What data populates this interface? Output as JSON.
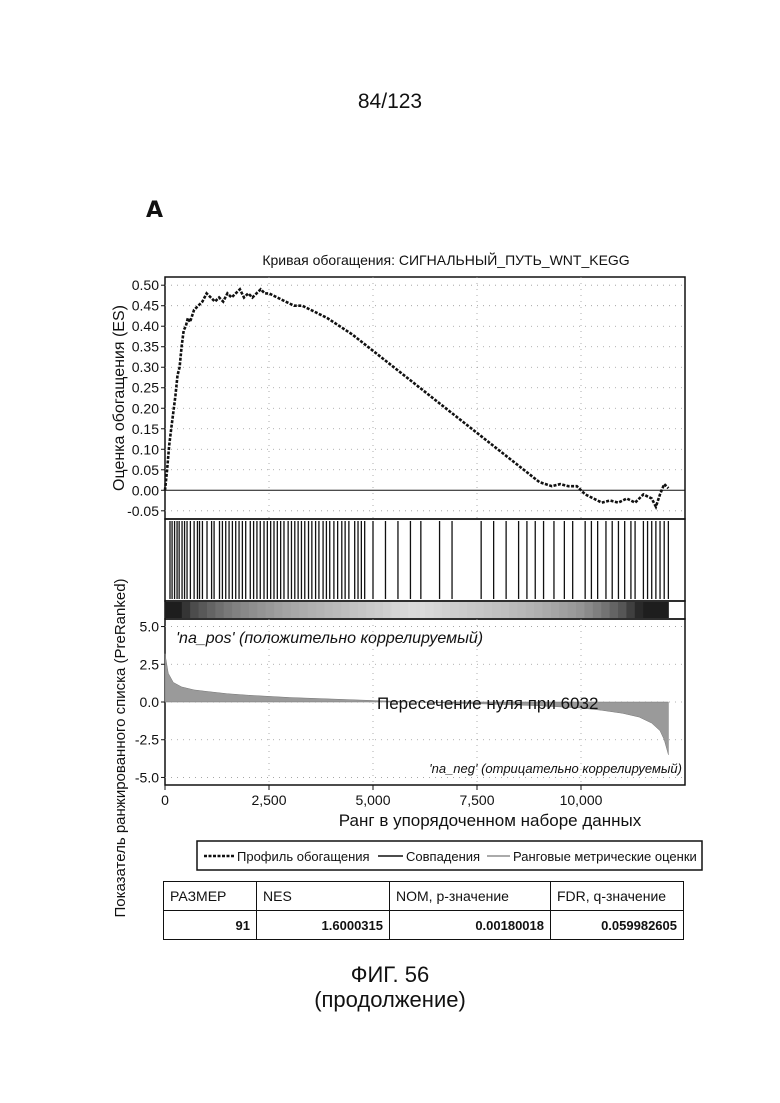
{
  "page_number": "84/123",
  "panel_label": "A",
  "figure": {
    "caption_line1": "ФИГ. 56",
    "caption_line2": "(продолжение)"
  },
  "chart_data": {
    "type": "line",
    "title": "Кривая обогащения: СИГНАЛЬНЫЙ_ПУТЬ_WNT_KEGG",
    "es_ylabel": "Оценка обогащения (ES)",
    "rank_ylabel": "Показатель ранжированного списка (PreRanked)",
    "xlabel": "Ранг в упорядоченном наборе данных",
    "xlim": [
      0,
      12500
    ],
    "x_ticks": [
      "0",
      "2,500",
      "5,000",
      "7,500",
      "10,000"
    ],
    "x_tick_values": [
      0,
      2500,
      5000,
      7500,
      10000
    ],
    "es_ylim": [
      -0.07,
      0.52
    ],
    "es_y_ticks": [
      "0.50",
      "0.45",
      "0.40",
      "0.35",
      "0.30",
      "0.25",
      "0.20",
      "0.15",
      "0.10",
      "0.05",
      "0.00",
      "-0.05"
    ],
    "es_y_tick_values": [
      0.5,
      0.45,
      0.4,
      0.35,
      0.3,
      0.25,
      0.2,
      0.15,
      0.1,
      0.05,
      0.0,
      -0.05
    ],
    "rank_ylim": [
      -5.5,
      5.5
    ],
    "rank_y_ticks": [
      "5.0",
      "2.5",
      "0.0",
      "-2.5",
      "-5.0"
    ],
    "rank_y_tick_values": [
      5,
      2.5,
      0,
      -2.5,
      -5
    ],
    "es_curve": {
      "x": [
        0,
        50,
        100,
        150,
        200,
        250,
        300,
        350,
        400,
        450,
        500,
        550,
        600,
        700,
        800,
        900,
        1000,
        1100,
        1200,
        1300,
        1400,
        1500,
        1600,
        1700,
        1800,
        1900,
        2000,
        2100,
        2200,
        2300,
        2400,
        2500,
        2700,
        2900,
        3100,
        3300,
        3500,
        3700,
        3900,
        4200,
        4500,
        5000,
        5500,
        6000,
        6500,
        7000,
        7500,
        8000,
        8500,
        9000,
        9300,
        9500,
        9700,
        9900,
        10100,
        10300,
        10500,
        10700,
        10900,
        11100,
        11300,
        11500,
        11700,
        11800,
        11900,
        12000,
        12100
      ],
      "es": [
        0.0,
        0.05,
        0.11,
        0.15,
        0.19,
        0.23,
        0.28,
        0.3,
        0.35,
        0.39,
        0.4,
        0.42,
        0.41,
        0.44,
        0.45,
        0.46,
        0.48,
        0.47,
        0.46,
        0.47,
        0.46,
        0.48,
        0.47,
        0.48,
        0.49,
        0.47,
        0.48,
        0.47,
        0.48,
        0.49,
        0.48,
        0.48,
        0.47,
        0.46,
        0.45,
        0.45,
        0.44,
        0.43,
        0.42,
        0.4,
        0.38,
        0.34,
        0.3,
        0.26,
        0.22,
        0.18,
        0.14,
        0.1,
        0.06,
        0.02,
        0.01,
        0.015,
        0.01,
        0.01,
        -0.01,
        -0.02,
        -0.03,
        -0.025,
        -0.03,
        -0.02,
        -0.03,
        -0.01,
        -0.02,
        -0.04,
        -0.01,
        0.015,
        0.005
      ]
    },
    "hits": [
      120,
      170,
      230,
      290,
      340,
      410,
      470,
      530,
      610,
      700,
      780,
      830,
      900,
      1010,
      1120,
      1180,
      1310,
      1380,
      1460,
      1540,
      1620,
      1700,
      1780,
      1860,
      1940,
      2050,
      2130,
      2210,
      2290,
      2380,
      2460,
      2540,
      2620,
      2700,
      2780,
      2860,
      2960,
      3040,
      3120,
      3200,
      3280,
      3360,
      3450,
      3530,
      3620,
      3700,
      3800,
      3880,
      3960,
      4060,
      4150,
      4250,
      4330,
      4420,
      4560,
      4640,
      4720,
      4800,
      5000,
      5300,
      5600,
      5900,
      6150,
      6600,
      6900,
      7600,
      7900,
      8200,
      8500,
      8700,
      8900,
      9100,
      9350,
      9600,
      9800,
      10100,
      10250,
      10400,
      10600,
      10750,
      10900,
      11050,
      11200,
      11300,
      11500,
      11600,
      11700,
      11800,
      11900,
      12000,
      12100
    ],
    "ranked_metric": {
      "x": [
        0,
        80,
        200,
        400,
        700,
        1000,
        1500,
        2000,
        3000,
        4000,
        5000,
        6032,
        7000,
        8000,
        9000,
        10000,
        10500,
        11000,
        11400,
        11700,
        11900,
        12000,
        12100
      ],
      "score": [
        3.2,
        1.9,
        1.3,
        1.0,
        0.8,
        0.7,
        0.55,
        0.45,
        0.3,
        0.2,
        0.1,
        0.0,
        -0.08,
        -0.15,
        -0.25,
        -0.4,
        -0.55,
        -0.75,
        -1.0,
        -1.4,
        -1.9,
        -2.5,
        -3.5
      ]
    },
    "pos_label": "'na_pos' (положительно коррелируемый)",
    "neg_label": "'na_neg' (отрицательно коррелируемый)",
    "zero_cross_label": "Пересечение нуля при 6032",
    "legend": [
      {
        "name": "Профиль обогащения",
        "style": "dashed"
      },
      {
        "name": "Совпадения",
        "style": "solid"
      },
      {
        "name": "Ранговые метрические оценки",
        "style": "gray"
      }
    ]
  },
  "stats_table": {
    "headers": [
      "РАЗМЕР",
      "NES",
      "NOM, p-значение",
      "FDR, q-значение"
    ],
    "values": [
      "91",
      "1.6000315",
      "0.00180018",
      "0.059982605"
    ]
  }
}
